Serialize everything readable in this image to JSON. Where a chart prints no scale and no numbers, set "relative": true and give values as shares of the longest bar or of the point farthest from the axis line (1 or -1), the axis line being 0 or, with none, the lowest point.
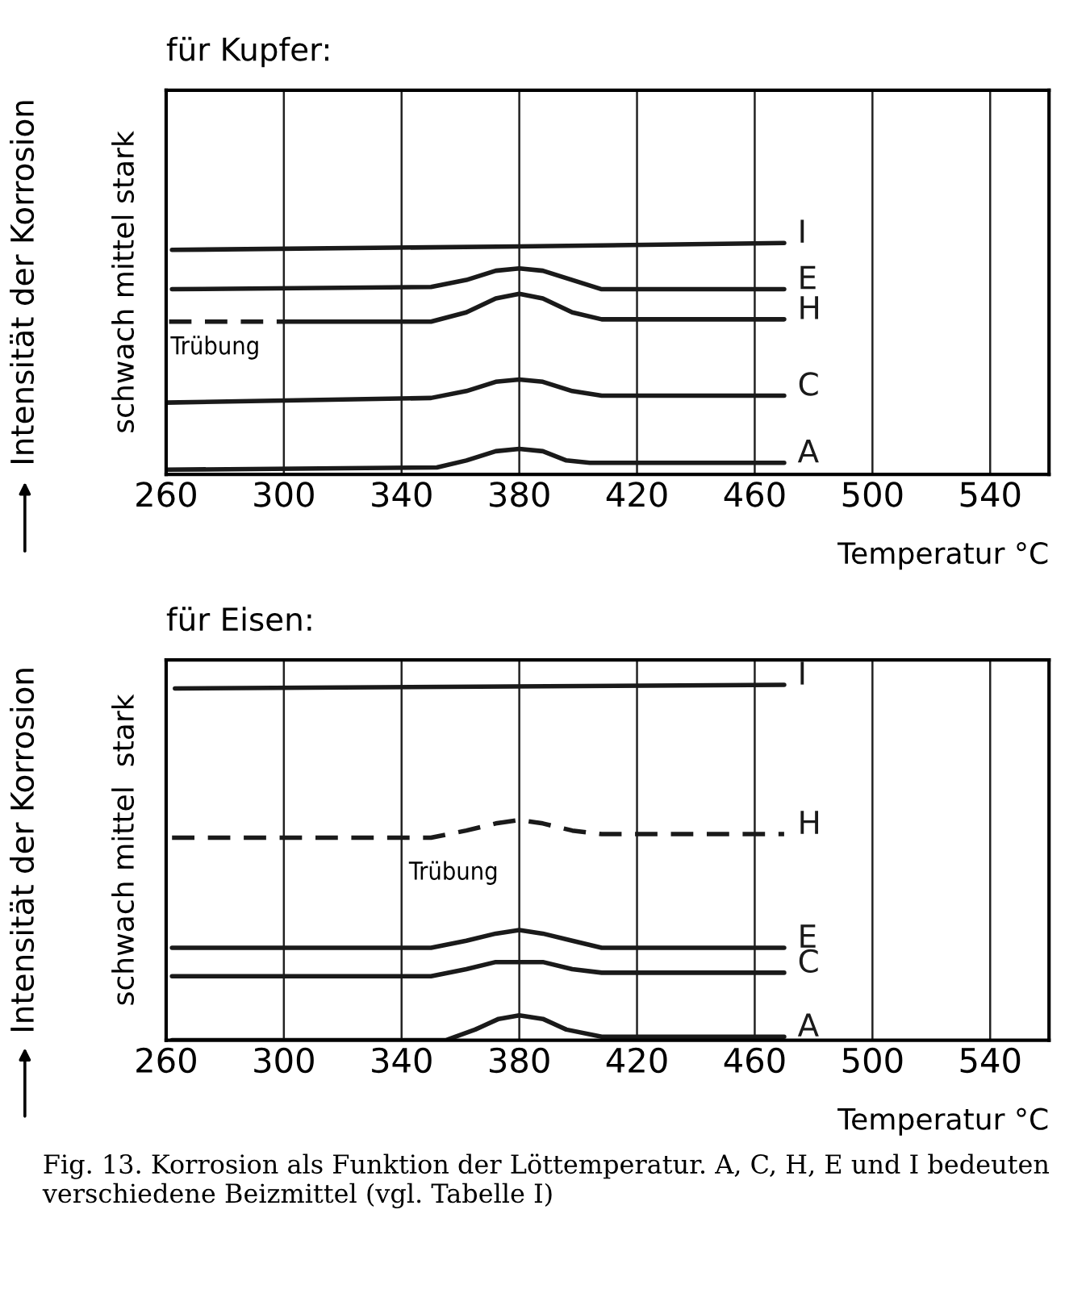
{
  "chart_data": [
    {
      "type": "line",
      "title": "für Kupfer:",
      "xlabel": "Temperatur °C",
      "ylabel": "schwach mittel stark",
      "relative": true,
      "grid": "x",
      "tick_labels": "x",
      "xlim": [
        260,
        560
      ],
      "xticks": [
        260,
        300,
        340,
        380,
        420,
        460,
        500,
        540
      ],
      "annotations": [
        "Intensität der Korrosion",
        "Trübung"
      ],
      "series": [
        {
          "name": "I",
          "color": "#1a1a1a",
          "line_style": "solid",
          "x": [
            262,
            380,
            470
          ],
          "values": [
            0.97,
            0.985,
            1.0
          ]
        },
        {
          "name": "E",
          "color": "#1a1a1a",
          "line_style": "solid",
          "x": [
            262,
            350,
            362,
            372,
            380,
            388,
            398,
            408,
            470
          ],
          "values": [
            0.8,
            0.81,
            0.84,
            0.88,
            0.89,
            0.88,
            0.84,
            0.8,
            0.8
          ]
        },
        {
          "color": "#1a1a1a",
          "line_style": "dashed",
          "x": [
            261,
            300
          ],
          "values": [
            0.66,
            0.66
          ]
        },
        {
          "name": "H",
          "color": "#1a1a1a",
          "line_style": "solid",
          "x": [
            300,
            350,
            362,
            372,
            380,
            388,
            398,
            408,
            470
          ],
          "values": [
            0.66,
            0.66,
            0.7,
            0.76,
            0.78,
            0.76,
            0.7,
            0.67,
            0.67
          ]
        },
        {
          "name": "C",
          "color": "#1a1a1a",
          "line_style": "solid",
          "x": [
            260,
            350,
            362,
            372,
            380,
            388,
            398,
            408,
            470
          ],
          "values": [
            0.31,
            0.33,
            0.36,
            0.4,
            0.41,
            0.4,
            0.36,
            0.34,
            0.34
          ]
        },
        {
          "name": "A",
          "color": "#1a1a1a",
          "line_style": "solid",
          "x": [
            260,
            352,
            362,
            372,
            380,
            388,
            396,
            404,
            470
          ],
          "values": [
            0.02,
            0.03,
            0.06,
            0.1,
            0.11,
            0.1,
            0.06,
            0.05,
            0.05
          ]
        }
      ]
    },
    {
      "type": "line",
      "title": "für Eisen:",
      "xlabel": "Temperatur °C",
      "ylabel": "schwach mittel  stark",
      "relative": true,
      "grid": "x",
      "tick_labels": "x",
      "xlim": [
        260,
        560
      ],
      "xticks": [
        260,
        300,
        340,
        380,
        420,
        460,
        500,
        540
      ],
      "annotations": [
        "Intensität der Korrosion",
        "Trübung",
        "Fig. 13. Korrosion als Funktion der Löttemperatur. A, C, H, E und I bedeuten verschiedene Beizmittel (vgl. Tabelle I)"
      ],
      "series": [
        {
          "name": "I",
          "color": "#1a1a1a",
          "line_style": "solid",
          "x": [
            263,
            470
          ],
          "values": [
            0.99,
            1.0
          ]
        },
        {
          "name": "H",
          "color": "#1a1a1a",
          "line_style": "dashed",
          "x": [
            262,
            350,
            362,
            372,
            380,
            388,
            398,
            408,
            470
          ],
          "values": [
            0.57,
            0.57,
            0.59,
            0.61,
            0.62,
            0.61,
            0.59,
            0.58,
            0.58
          ]
        },
        {
          "name": "E",
          "color": "#1a1a1a",
          "line_style": "solid",
          "x": [
            262,
            350,
            362,
            372,
            380,
            388,
            398,
            408,
            470
          ],
          "values": [
            0.26,
            0.26,
            0.28,
            0.3,
            0.31,
            0.3,
            0.28,
            0.26,
            0.26
          ]
        },
        {
          "name": "C",
          "color": "#1a1a1a",
          "line_style": "solid",
          "x": [
            262,
            350,
            362,
            372,
            380,
            388,
            398,
            408,
            470
          ],
          "values": [
            0.18,
            0.18,
            0.2,
            0.22,
            0.22,
            0.22,
            0.2,
            0.19,
            0.19
          ]
        },
        {
          "name": "A",
          "color": "#1a1a1a",
          "line_style": "solid",
          "x": [
            262,
            355,
            365,
            373,
            380,
            388,
            396,
            408,
            470
          ],
          "values": [
            0.0,
            0.0,
            0.03,
            0.06,
            0.07,
            0.06,
            0.03,
            0.01,
            0.01
          ]
        }
      ]
    }
  ]
}
